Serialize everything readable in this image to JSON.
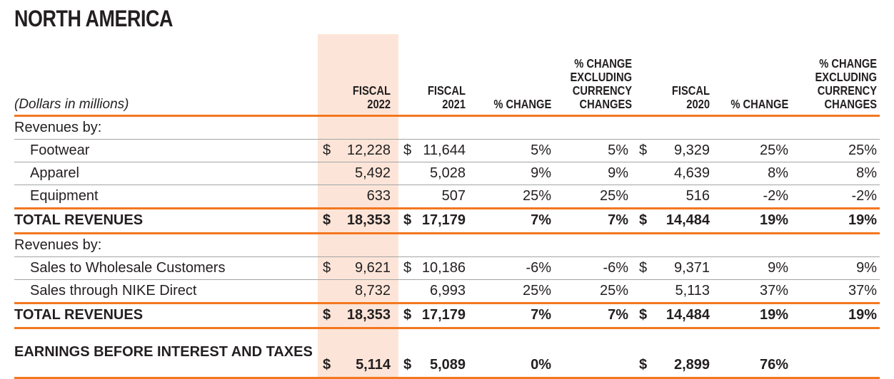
{
  "page": {
    "title": "NORTH AMERICA"
  },
  "table": {
    "unit_label": "(Dollars in millions)",
    "headers": {
      "fiscal2022": "FISCAL 2022",
      "fiscal2021": "FISCAL 2021",
      "pct_change_1": "% CHANGE",
      "pct_change_excl_1": "% CHANGE\nEXCLUDING\nCURRENCY\nCHANGES",
      "fiscal2020": "FISCAL 2020",
      "pct_change_2": "% CHANGE",
      "pct_change_excl_2": "% CHANGE\nEXCLUDING\nCURRENCY\nCHANGES"
    },
    "colors": {
      "rule_orange": "#f4771f",
      "rule_gray": "#a2a4a7",
      "highlight_peach": "#fce5d8",
      "text": "#231f20"
    },
    "rows": [
      {
        "label": "Revenues by:"
      },
      {
        "label": "Footwear",
        "d1": "$",
        "v1": "12,228",
        "d2": "$",
        "v2": "11,644",
        "p1": "5%",
        "px1": "5%",
        "d3": "$",
        "v3": "9,329",
        "p2": "25%",
        "px2": "25%"
      },
      {
        "label": "Apparel",
        "v1": "5,492",
        "v2": "5,028",
        "p1": "9%",
        "px1": "9%",
        "v3": "4,639",
        "p2": "8%",
        "px2": "8%"
      },
      {
        "label": "Equipment",
        "v1": "633",
        "v2": "507",
        "p1": "25%",
        "px1": "25%",
        "v3": "516",
        "p2": "-2%",
        "px2": "-2%"
      },
      {
        "label": "TOTAL REVENUES",
        "d1": "$",
        "v1": "18,353",
        "d2": "$",
        "v2": "17,179",
        "p1": "7%",
        "px1": "7%",
        "d3": "$",
        "v3": "14,484",
        "p2": "19%",
        "px2": "19%"
      },
      {
        "label": "Revenues by:"
      },
      {
        "label": "Sales to Wholesale Customers",
        "d1": "$",
        "v1": "9,621",
        "d2": "$",
        "v2": "10,186",
        "p1": "-6%",
        "px1": "-6%",
        "d3": "$",
        "v3": "9,371",
        "p2": "9%",
        "px2": "9%"
      },
      {
        "label": "Sales through NIKE Direct",
        "v1": "8,732",
        "v2": "6,993",
        "p1": "25%",
        "px1": "25%",
        "v3": "5,113",
        "p2": "37%",
        "px2": "37%"
      },
      {
        "label": "TOTAL REVENUES",
        "d1": "$",
        "v1": "18,353",
        "d2": "$",
        "v2": "17,179",
        "p1": "7%",
        "px1": "7%",
        "d3": "$",
        "v3": "14,484",
        "p2": "19%",
        "px2": "19%"
      },
      {
        "label": "EARNINGS BEFORE INTEREST AND TAXES",
        "d1": "$",
        "v1": "5,114",
        "d2": "$",
        "v2": "5,089",
        "p1": "0%",
        "d3": "$",
        "v3": "2,899",
        "p2": "76%"
      }
    ]
  }
}
